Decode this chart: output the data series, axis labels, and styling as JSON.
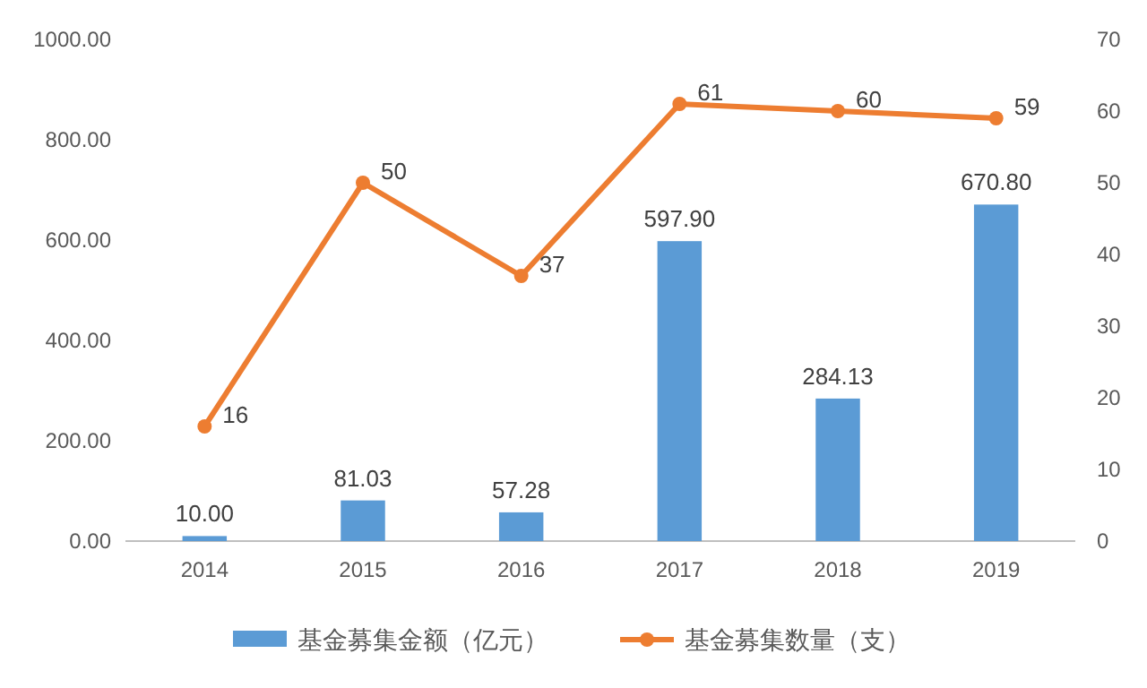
{
  "chart_data": {
    "type": "bar",
    "categories": [
      "2014",
      "2015",
      "2016",
      "2017",
      "2018",
      "2019"
    ],
    "series": [
      {
        "name": "基金募集金额（亿元）",
        "color": "#5b9bd5",
        "values": [
          10,
          81.03,
          57.28,
          597.9,
          284.13,
          670.8
        ],
        "value_labels": [
          "10.00",
          "81.03",
          "57.28",
          "597.90",
          "284.13",
          "670.80"
        ]
      },
      {
        "name": "基金募集数量（支）",
        "type": "line",
        "axis": "y2",
        "color": "#ed7d31",
        "values": [
          16,
          50,
          37,
          61,
          60,
          59
        ],
        "value_labels": [
          "16",
          "50",
          "37",
          "61",
          "60",
          "59"
        ]
      }
    ],
    "ylim": [
      0,
      1000
    ],
    "yticks": [
      {
        "value": 0,
        "label": "0.00"
      },
      {
        "value": 200,
        "label": "200.00"
      },
      {
        "value": 400,
        "label": "400.00"
      },
      {
        "value": 600,
        "label": "600.00"
      },
      {
        "value": 800,
        "label": "800.00"
      },
      {
        "value": 1000,
        "label": "1000.00"
      }
    ],
    "y2lim": [
      0,
      70
    ],
    "y2ticks": [
      0,
      10,
      20,
      30,
      40,
      50,
      60,
      70
    ],
    "marker": "circle",
    "line_style": "solid",
    "legend": "bottom"
  }
}
